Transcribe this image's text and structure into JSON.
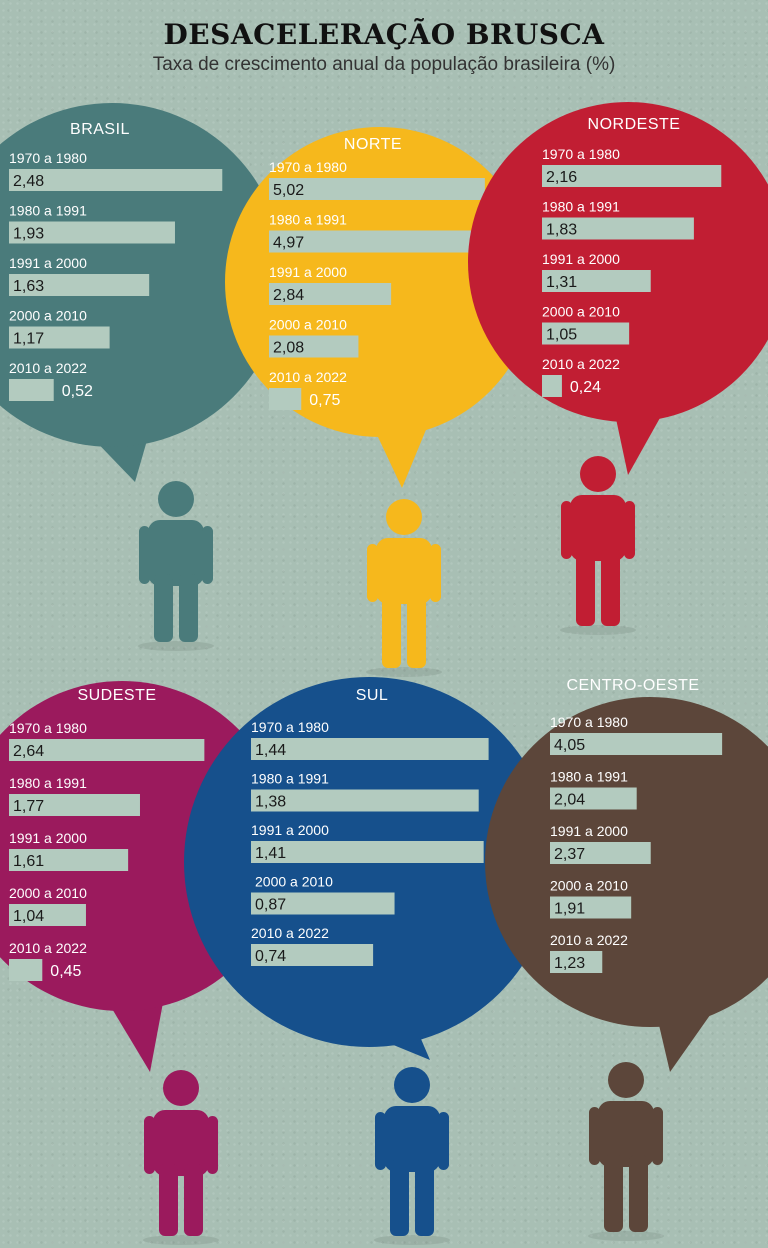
{
  "header": {
    "title": "DESACELERAÇÃO BRUSCA",
    "subtitle": "Taxa de crescimento anual da população brasileira (%)"
  },
  "colors": {
    "background": "#a8bfb4",
    "bar": "#b3cbbf",
    "brasil": "#4a7b7b",
    "norte": "#f6b81c",
    "nordeste": "#c11e33",
    "sudeste": "#9b1a5d",
    "sul": "#16508c",
    "centro_oeste": "#5c463a"
  },
  "chart_data": [
    {
      "type": "bar",
      "region": "BRASIL",
      "color": "#4a7b7b",
      "categories": [
        "1970 a 1980",
        "1980 a 1991",
        "1991 a 2000",
        "2000 a 2010",
        "2010 a 2022"
      ],
      "values": [
        2.48,
        1.93,
        1.63,
        1.17,
        0.52
      ],
      "labels": [
        "2,48",
        "1,93",
        "1,63",
        "1,17",
        "0,52"
      ]
    },
    {
      "type": "bar",
      "region": "NORTE",
      "color": "#f6b81c",
      "categories": [
        "1970 a 1980",
        "1980 a 1991",
        "1991 a 2000",
        "2000 a 2010",
        "2010 a 2022"
      ],
      "values": [
        5.02,
        4.97,
        2.84,
        2.08,
        0.75
      ],
      "labels": [
        "5,02",
        "4,97",
        "2,84",
        "2,08",
        "0,75"
      ]
    },
    {
      "type": "bar",
      "region": "NORDESTE",
      "color": "#c11e33",
      "categories": [
        "1970 a 1980",
        "1980 a 1991",
        "1991 a 2000",
        "2000 a 2010",
        "2010 a 2022"
      ],
      "values": [
        2.16,
        1.83,
        1.31,
        1.05,
        0.24
      ],
      "labels": [
        "2,16",
        "1,83",
        "1,31",
        "1,05",
        "0,24"
      ]
    },
    {
      "type": "bar",
      "region": "SUDESTE",
      "color": "#9b1a5d",
      "categories": [
        "1970 a 1980",
        "1980 a 1991",
        "1991 a 2000",
        "2000 a 2010",
        "2010 a 2022"
      ],
      "values": [
        2.64,
        1.77,
        1.61,
        1.04,
        0.45
      ],
      "labels": [
        "2,64",
        "1,77",
        "1,61",
        "1,04",
        "0,45"
      ]
    },
    {
      "type": "bar",
      "region": "SUL",
      "color": "#16508c",
      "categories": [
        "1970 a 1980",
        "1980 a 1991",
        "1991 a 2000",
        "2000 a 2010",
        "2010 a 2022"
      ],
      "values": [
        1.44,
        1.38,
        1.41,
        0.87,
        0.74
      ],
      "labels": [
        "1,44",
        "1,38",
        "1,41",
        "0,87",
        "0,74"
      ]
    },
    {
      "type": "bar",
      "region": "CENTRO-OESTE",
      "color": "#5c463a",
      "categories": [
        "1970 a 1980",
        "1980 a 1991",
        "1991 a 2000",
        "2000 a 2010",
        "2010 a 2022"
      ],
      "values": [
        4.05,
        2.04,
        2.37,
        1.91,
        1.23
      ],
      "labels": [
        "4,05",
        "2,04",
        "2,37",
        "1,91",
        "1,23"
      ]
    }
  ]
}
